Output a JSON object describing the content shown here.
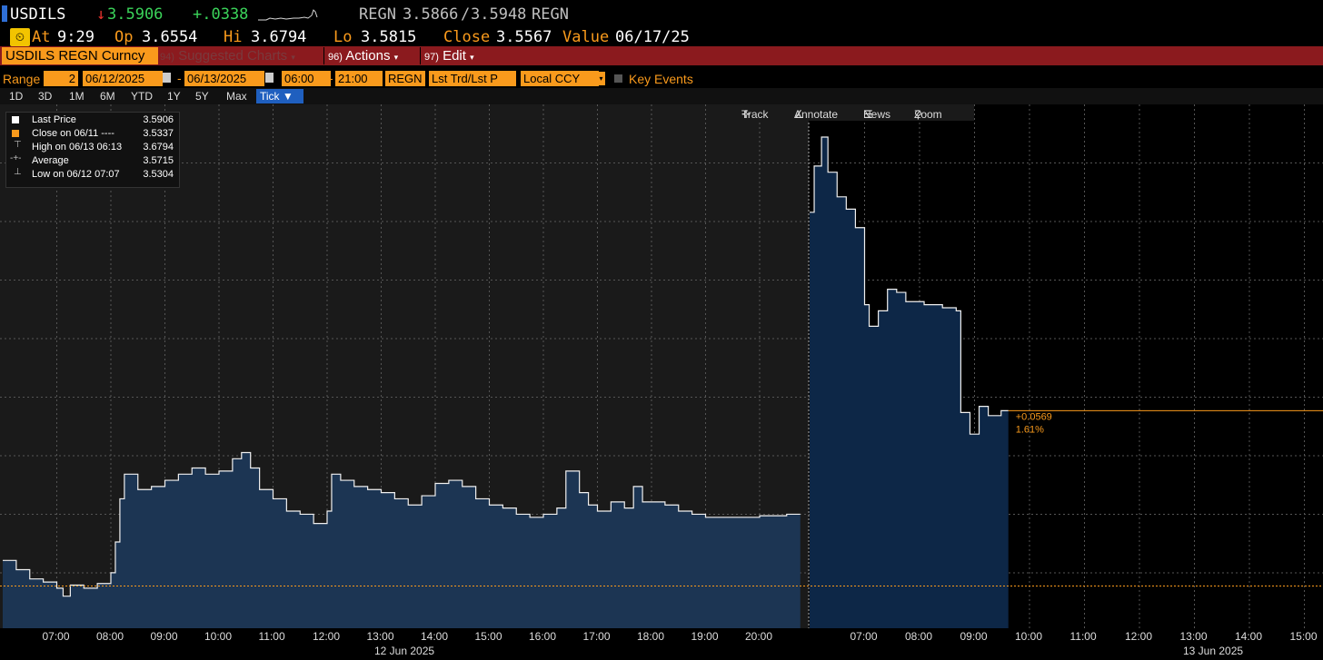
{
  "header": {
    "ticker": "USDILS",
    "last_arrow": "↓",
    "last": "3.5906",
    "change": "+.0338",
    "bid_ask_source_left": "REGN",
    "bid": "3.5866",
    "separator": "/",
    "ask": "3.5948",
    "bid_ask_source_right": "REGN"
  },
  "subheader": {
    "at_label": "At",
    "time": "9:29",
    "op_label": "Op",
    "open": "3.6554",
    "hi_label": "Hi",
    "high": "3.6794",
    "lo_label": "Lo",
    "low": "3.5815",
    "close_label": "Close",
    "close": "3.5567",
    "value_label": "Value",
    "value_date": "06/17/25"
  },
  "menubar": {
    "security": "USDILS REGN Curncy",
    "suggested_num": "94)",
    "suggested": "Suggested Charts",
    "actions_num": "96)",
    "actions": "Actions",
    "edit_num": "97)",
    "edit": "Edit"
  },
  "rangebar": {
    "range_label": "Range",
    "days": "2",
    "start_date": "06/12/2025",
    "dash1": "-",
    "end_date": "06/13/2025",
    "start_time": "06:00",
    "dash2": "-",
    "end_time": "21:00",
    "source": "REGN",
    "price_type": "Lst Trd/Lst P",
    "currency": "Local CCY",
    "key_events": "Key Events"
  },
  "periods": [
    "1D",
    "3D",
    "1M",
    "6M",
    "YTD",
    "1Y",
    "5Y",
    "Max",
    "Tick ▼"
  ],
  "legend": [
    {
      "label": "Last Price",
      "value": "3.5906"
    },
    {
      "label": "Close on 06/11 ----",
      "value": "3.5337"
    },
    {
      "label": "High on 06/13 06:13",
      "value": "3.6794"
    },
    {
      "label": "Average",
      "value": "3.5715"
    },
    {
      "label": "Low on 06/12 07:07",
      "value": "3.5304"
    }
  ],
  "toolbar": {
    "track": "Track",
    "annotate": "Annotate",
    "news": "News",
    "zoom": "Zoom"
  },
  "annotation": {
    "change": "+0.0569",
    "pct": "1.61%"
  },
  "xaxis": {
    "ticks_day1": [
      "07:00",
      "08:00",
      "09:00",
      "10:00",
      "11:00",
      "12:00",
      "13:00",
      "14:00",
      "15:00",
      "16:00",
      "17:00",
      "18:00",
      "19:00",
      "20:00"
    ],
    "ticks_day2": [
      "07:00",
      "08:00",
      "09:00",
      "10:00",
      "11:00",
      "12:00",
      "13:00",
      "14:00",
      "15:00"
    ],
    "day1_label": "12 Jun 2025",
    "day2_label": "13 Jun 2025"
  },
  "colors": {
    "accent_orange": "#f99a1c",
    "up_green": "#3bd45a",
    "down_red": "#e8322d",
    "menu_red": "#8b1a1e",
    "area_day1": "#1c3553",
    "area_day2": "#0d2747"
  },
  "chart_data": {
    "type": "area",
    "y_range": [
      3.52,
      3.69
    ],
    "reference_close": 3.5337,
    "series": [
      {
        "points_day1": [
          [
            "06:00",
            3.542
          ],
          [
            "06:15",
            3.539
          ],
          [
            "06:30",
            3.536
          ],
          [
            "06:45",
            3.535
          ],
          [
            "07:00",
            3.533
          ],
          [
            "07:07",
            3.5304
          ],
          [
            "07:15",
            3.534
          ],
          [
            "07:30",
            3.533
          ],
          [
            "07:45",
            3.5345
          ],
          [
            "08:00",
            3.538
          ],
          [
            "08:05",
            3.548
          ],
          [
            "08:10",
            3.562
          ],
          [
            "08:15",
            3.57
          ],
          [
            "08:30",
            3.565
          ],
          [
            "08:45",
            3.566
          ],
          [
            "09:00",
            3.568
          ],
          [
            "09:15",
            3.57
          ],
          [
            "09:30",
            3.572
          ],
          [
            "09:45",
            3.57
          ],
          [
            "10:00",
            3.571
          ],
          [
            "10:15",
            3.575
          ],
          [
            "10:25",
            3.577
          ],
          [
            "10:35",
            3.572
          ],
          [
            "10:45",
            3.565
          ],
          [
            "11:00",
            3.562
          ],
          [
            "11:15",
            3.558
          ],
          [
            "11:30",
            3.557
          ],
          [
            "11:45",
            3.554
          ],
          [
            "12:00",
            3.558
          ],
          [
            "12:05",
            3.57
          ],
          [
            "12:15",
            3.568
          ],
          [
            "12:30",
            3.566
          ],
          [
            "12:45",
            3.565
          ],
          [
            "13:00",
            3.564
          ],
          [
            "13:15",
            3.562
          ],
          [
            "13:30",
            3.56
          ],
          [
            "13:45",
            3.563
          ],
          [
            "14:00",
            3.567
          ],
          [
            "14:15",
            3.568
          ],
          [
            "14:30",
            3.566
          ],
          [
            "14:45",
            3.562
          ],
          [
            "15:00",
            3.56
          ],
          [
            "15:15",
            3.559
          ],
          [
            "15:30",
            3.557
          ],
          [
            "15:45",
            3.556
          ],
          [
            "16:00",
            3.557
          ],
          [
            "16:15",
            3.559
          ],
          [
            "16:25",
            3.571
          ],
          [
            "16:40",
            3.564
          ],
          [
            "16:50",
            3.56
          ],
          [
            "17:00",
            3.558
          ],
          [
            "17:15",
            3.561
          ],
          [
            "17:30",
            3.559
          ],
          [
            "17:40",
            3.566
          ],
          [
            "17:50",
            3.561
          ],
          [
            "18:00",
            3.561
          ],
          [
            "18:15",
            3.56
          ],
          [
            "18:30",
            3.558
          ],
          [
            "18:45",
            3.557
          ],
          [
            "19:00",
            3.556
          ],
          [
            "19:15",
            3.556
          ],
          [
            "19:30",
            3.556
          ],
          [
            "20:00",
            3.5565
          ],
          [
            "20:30",
            3.557
          ]
        ],
        "points_day2": [
          [
            "06:00",
            3.655
          ],
          [
            "06:05",
            3.67
          ],
          [
            "06:13",
            3.6794
          ],
          [
            "06:20",
            3.668
          ],
          [
            "06:30",
            3.66
          ],
          [
            "06:40",
            3.656
          ],
          [
            "06:50",
            3.65
          ],
          [
            "07:00",
            3.625
          ],
          [
            "07:05",
            3.618
          ],
          [
            "07:15",
            3.623
          ],
          [
            "07:25",
            3.63
          ],
          [
            "07:35",
            3.629
          ],
          [
            "07:45",
            3.626
          ],
          [
            "07:55",
            3.626
          ],
          [
            "08:05",
            3.625
          ],
          [
            "08:15",
            3.625
          ],
          [
            "08:25",
            3.624
          ],
          [
            "08:40",
            3.623
          ],
          [
            "08:45",
            3.59
          ],
          [
            "08:55",
            3.583
          ],
          [
            "09:05",
            3.592
          ],
          [
            "09:15",
            3.589
          ],
          [
            "09:29",
            3.5906
          ]
        ]
      }
    ]
  }
}
